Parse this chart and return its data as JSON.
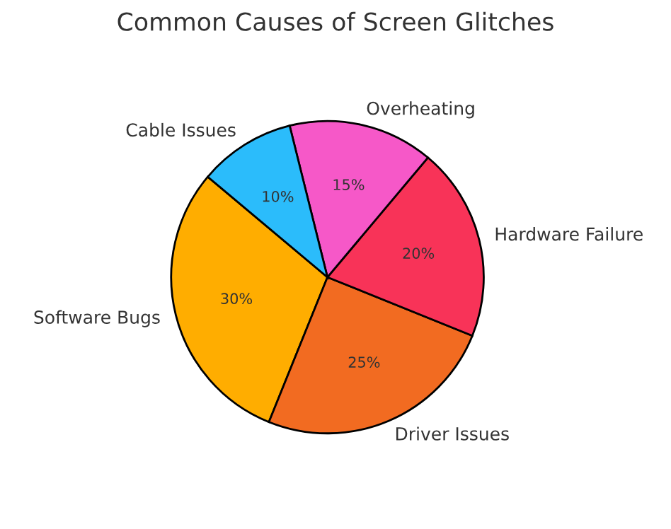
{
  "chart_data": {
    "type": "pie",
    "title": "Common Causes of Screen Glitches",
    "categories": [
      "Software Bugs",
      "Driver Issues",
      "Hardware Failure",
      "Overheating",
      "Cable Issues"
    ],
    "values": [
      30,
      25,
      20,
      15,
      10
    ],
    "colors": [
      "#ffad00",
      "#f26b21",
      "#f83358",
      "#f658c8",
      "#2bbcfb"
    ],
    "value_labels": [
      "30%",
      "25%",
      "20%",
      "15%",
      "10%"
    ]
  }
}
